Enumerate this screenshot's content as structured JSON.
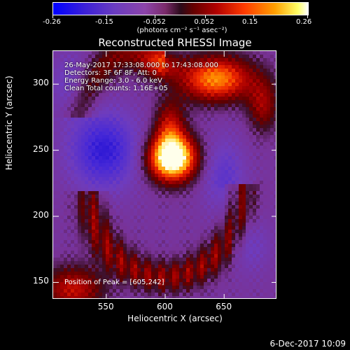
{
  "colorbar": {
    "ticks": [
      "-0.26",
      "-0.15",
      "-0.052",
      "0.052",
      "0.15",
      "0.26"
    ],
    "units": "(photons cm⁻² s⁻¹ asec⁻²)"
  },
  "title": "Reconstructed RHESSI Image",
  "info": {
    "time_range": "26-May-2017 17:33:08.000 to 17:43:08.000",
    "detectors": "Detectors: 3F 6F 8F, Att: 0",
    "energy": "Energy Range: 3.0 - 6.0 keV",
    "clean": "Clean     Total counts: 1.16E+05"
  },
  "peak_text": "Position of Peak = [605,242]",
  "footer_date": "6-Dec-2017 10:09",
  "chart_data": {
    "type": "heatmap",
    "title": "Reconstructed RHESSI Image",
    "xlabel": "Heliocentric X (arcsec)",
    "ylabel": "Heliocentric Y (arcsec)",
    "xlim": [
      505,
      695
    ],
    "ylim": [
      137,
      325
    ],
    "xticks": [
      550,
      600,
      650
    ],
    "yticks": [
      150,
      200,
      250,
      300
    ],
    "colorbar_range": [
      -0.26,
      0.26
    ],
    "colorbar_ticks": [
      -0.26,
      -0.15,
      -0.052,
      0.052,
      0.15,
      0.26
    ],
    "peak": {
      "x": 605,
      "y": 242
    }
  }
}
